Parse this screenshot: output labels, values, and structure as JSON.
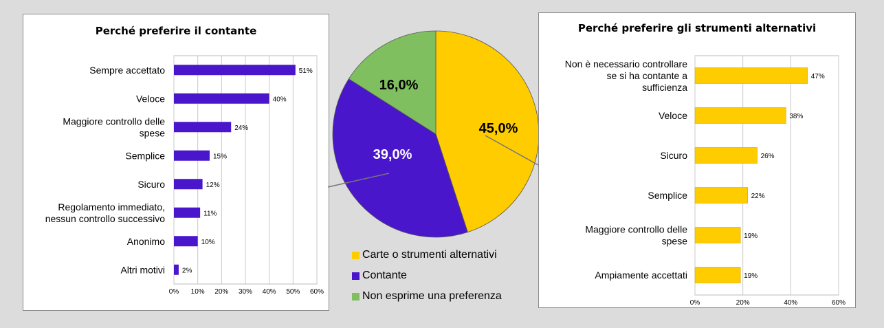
{
  "colors": {
    "cash": "#4a16cc",
    "alternative": "#ffcc00",
    "none": "#7fbf60"
  },
  "chart_data": [
    {
      "type": "bar",
      "orientation": "horizontal",
      "title": "Perché preferire il contante",
      "categories": [
        "Sempre accettato",
        "Veloce",
        "Maggiore controllo delle spese",
        "Semplice",
        "Sicuro",
        "Regolamento immediato, nessun controllo successivo",
        "Anonimo",
        "Altri motivi"
      ],
      "values": [
        51,
        40,
        24,
        15,
        12,
        11,
        10,
        2
      ],
      "value_labels": [
        "51%",
        "40%",
        "24%",
        "15%",
        "12%",
        "11%",
        "10%",
        "2%"
      ],
      "xlim": [
        0,
        60
      ],
      "xticks": [
        "0%",
        "10%",
        "20%",
        "30%",
        "40%",
        "50%",
        "60%"
      ],
      "grid": true,
      "bar_color": "#4a16cc"
    },
    {
      "type": "pie",
      "series": [
        {
          "name": "Carte o strumenti alternativi",
          "value": 45.0,
          "label": "45,0%",
          "color": "#ffcc00"
        },
        {
          "name": "Contante",
          "value": 39.0,
          "label": "39,0%",
          "color": "#4a16cc"
        },
        {
          "name": "Non esprime una preferenza",
          "value": 16.0,
          "label": "16,0%",
          "color": "#7fbf60"
        }
      ],
      "legend": "bottom"
    },
    {
      "type": "bar",
      "orientation": "horizontal",
      "title": "Perché preferire gli strumenti alternativi",
      "categories": [
        "Non è necessario controllare se si ha contante a sufficienza",
        "Veloce",
        "Sicuro",
        "Semplice",
        "Maggiore controllo delle spese",
        "Ampiamente accettati"
      ],
      "values": [
        47,
        38,
        26,
        22,
        19,
        19
      ],
      "value_labels": [
        "47%",
        "38%",
        "26%",
        "22%",
        "19%",
        "19%"
      ],
      "xlim": [
        0,
        60
      ],
      "xticks": [
        "0%",
        "20%",
        "40%",
        "60%"
      ],
      "grid": true,
      "bar_color": "#ffcc00"
    }
  ]
}
